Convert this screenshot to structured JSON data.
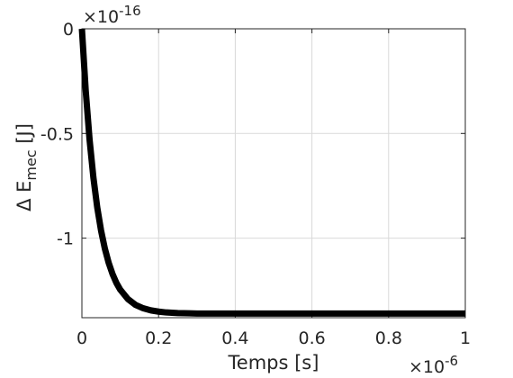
{
  "chart_data": {
    "type": "line",
    "xlabel": "Temps [s]",
    "ylabel_prefix": "Δ E",
    "ylabel_subscript": "mec",
    "ylabel_suffix": " [J]",
    "x_multiplier": "×10",
    "x_multiplier_exp": "-6",
    "y_multiplier": "×10",
    "y_multiplier_exp": "-16",
    "xlim": [
      0,
      1
    ],
    "ylim": [
      -1.38,
      0
    ],
    "x_ticks": [
      0,
      0.2,
      0.4,
      0.6,
      0.8,
      1
    ],
    "x_tick_labels": [
      "0",
      "0.2",
      "0.4",
      "0.6",
      "0.8",
      "1"
    ],
    "y_ticks": [
      0,
      -0.5,
      -1
    ],
    "y_tick_labels": [
      "0",
      "-0.5",
      "-1"
    ],
    "grid": true,
    "series": [
      {
        "color": "#000000",
        "x": [
          0,
          0.01,
          0.02,
          0.03,
          0.04,
          0.05,
          0.06,
          0.07,
          0.08,
          0.09,
          0.1,
          0.12,
          0.14,
          0.16,
          0.18,
          0.2,
          0.22,
          0.25,
          0.28,
          0.3,
          0.35,
          0.4,
          0.5,
          0.6,
          0.7,
          0.8,
          0.9,
          1.0
        ],
        "y": [
          0,
          -0.297,
          -0.529,
          -0.711,
          -0.853,
          -0.964,
          -1.051,
          -1.119,
          -1.172,
          -1.214,
          -1.246,
          -1.291,
          -1.319,
          -1.335,
          -1.345,
          -1.351,
          -1.355,
          -1.358,
          -1.359,
          -1.36,
          -1.36,
          -1.36,
          -1.36,
          -1.36,
          -1.36,
          -1.36,
          -1.36,
          -1.36
        ]
      }
    ]
  }
}
